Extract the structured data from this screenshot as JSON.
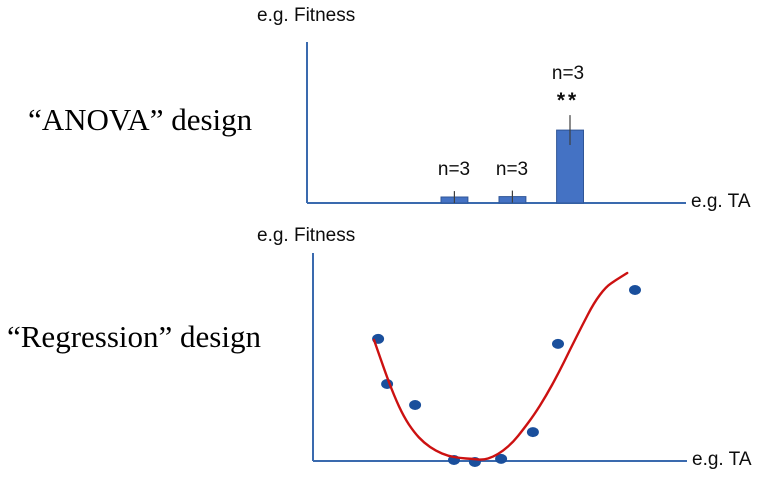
{
  "page": {
    "background_color": "#ffffff"
  },
  "colors": {
    "bar_fill": "#4472c4",
    "bar_border": "#2f5597",
    "axis": "#3a6aae",
    "error_bar": "#3f3f3f",
    "dot": "#1a4f9c",
    "curve": "#cc1111",
    "text": "#0d0d0d"
  },
  "chart_data": [
    {
      "type": "bar",
      "title": "“ANOVA” design",
      "ylabel": "e.g. Fitness",
      "xlabel": "e.g. TA",
      "x_tick_labels": "none",
      "y_tick_labels": "none",
      "grid": "off",
      "bar_labels": [
        "n=3",
        "n=3",
        "n=3"
      ],
      "annotations": [
        {
          "target_bar_index": 2,
          "text": "**"
        }
      ],
      "values_fraction_of_y_axis": [
        0.037,
        0.04,
        0.453
      ],
      "error_bar_fraction_of_y_axis": [
        0.037,
        0.037,
        0.093
      ],
      "bar_centers_fraction_of_x_axis": [
        0.389,
        0.542,
        0.694
      ],
      "bar_width_fraction_of_x_axis": 0.071
    },
    {
      "type": "scatter",
      "title": "“Regression” design",
      "ylabel": "e.g. Fitness",
      "xlabel": "e.g. TA",
      "x_tick_labels": "none",
      "y_tick_labels": "none",
      "grid": "off",
      "points_fraction_of_axes": [
        [
          0.174,
          0.587
        ],
        [
          0.198,
          0.37
        ],
        [
          0.273,
          0.269
        ],
        [
          0.377,
          0.005
        ],
        [
          0.433,
          -0.005
        ],
        [
          0.503,
          0.01
        ],
        [
          0.588,
          0.139
        ],
        [
          0.655,
          0.563
        ],
        [
          0.861,
          0.822
        ]
      ],
      "fit_curve": {
        "shape": "quadratic-like fit",
        "points_fraction_of_axes": [
          [
            0.163,
            0.582
          ],
          [
            0.19,
            0.442
          ],
          [
            0.217,
            0.313
          ],
          [
            0.243,
            0.212
          ],
          [
            0.27,
            0.139
          ],
          [
            0.297,
            0.087
          ],
          [
            0.329,
            0.048
          ],
          [
            0.361,
            0.024
          ],
          [
            0.393,
            0.014
          ],
          [
            0.425,
            0.01
          ],
          [
            0.455,
            0.005
          ],
          [
            0.481,
            0.019
          ],
          [
            0.508,
            0.048
          ],
          [
            0.535,
            0.091
          ],
          [
            0.561,
            0.149
          ],
          [
            0.591,
            0.221
          ],
          [
            0.623,
            0.313
          ],
          [
            0.655,
            0.418
          ],
          [
            0.687,
            0.534
          ],
          [
            0.719,
            0.649
          ],
          [
            0.751,
            0.76
          ],
          [
            0.783,
            0.837
          ],
          [
            0.81,
            0.87
          ],
          [
            0.84,
            0.904
          ]
        ]
      }
    }
  ]
}
